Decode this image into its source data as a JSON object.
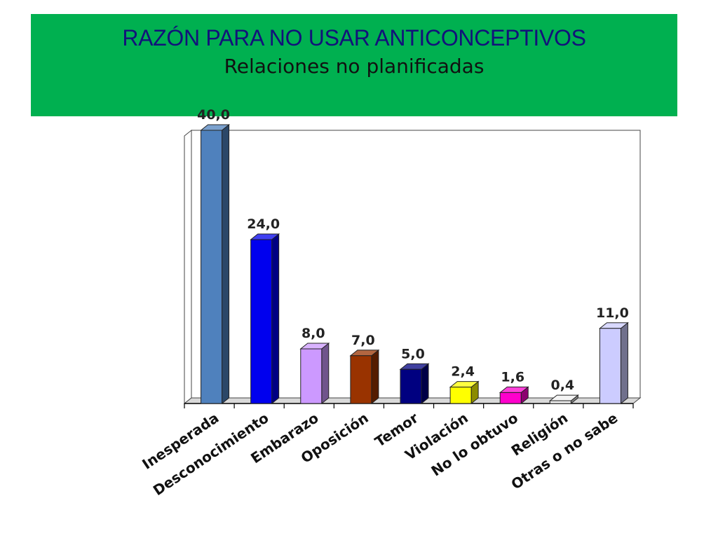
{
  "header": {
    "title": "RAZÓN PARA NO USAR ANTICONCEPTIVOS",
    "subtitle": "Relaciones no planificadas"
  },
  "colors": {
    "banner": "#00b050",
    "title": "#12127a"
  },
  "chart_data": {
    "type": "bar",
    "style": "3d",
    "categories": [
      "Inesperada",
      "Desconocimiento",
      "Embarazo",
      "Oposición",
      "Temor",
      "Violación",
      "No lo obtuvo",
      "Religión",
      "Otras o no sabe"
    ],
    "values": [
      40.0,
      24.0,
      8.0,
      7.0,
      5.0,
      2.4,
      1.6,
      0.4,
      11.0
    ],
    "value_labels": [
      "40,0",
      "24,0",
      "8,0",
      "7,0",
      "5,0",
      "2,4",
      "1,6",
      "0,4",
      "11,0"
    ],
    "bar_colors": [
      "#4f81bd",
      "#0000ee",
      "#cc99ff",
      "#993300",
      "#000080",
      "#ffff00",
      "#ff00cc",
      "#f0f0f0",
      "#ccccff"
    ],
    "ylim": [
      0,
      40
    ],
    "grid": false,
    "legend": "none"
  }
}
